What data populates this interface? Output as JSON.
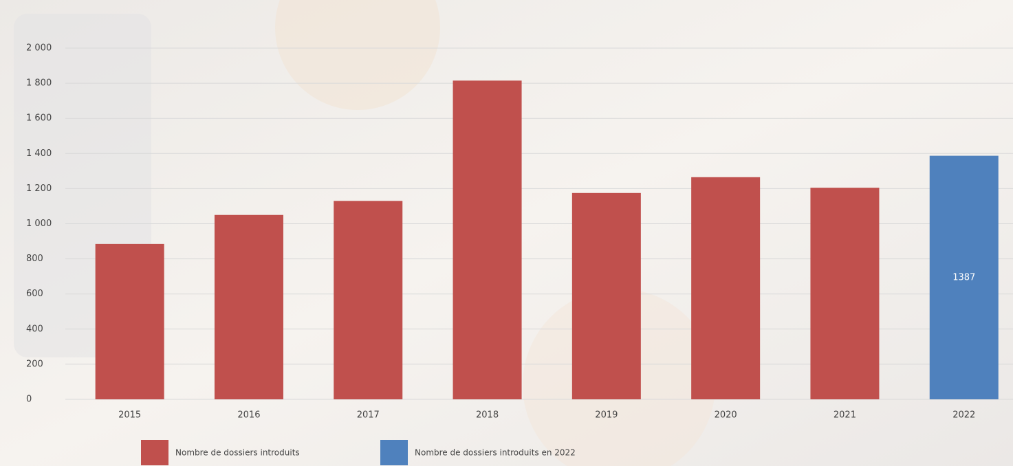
{
  "chart_data": {
    "type": "bar",
    "categories": [
      "2015",
      "2016",
      "2017",
      "2018",
      "2019",
      "2020",
      "2021",
      "2022"
    ],
    "series": [
      {
        "name": "Nombre de dossiers introduits",
        "color": "#c0504d",
        "values": [
          885,
          1050,
          1130,
          1815,
          1175,
          1265,
          1205,
          null
        ]
      },
      {
        "name": "Nombre de dossiers introduits en 2022",
        "color": "#4f81bd",
        "values": [
          null,
          null,
          null,
          null,
          null,
          null,
          null,
          1387
        ]
      }
    ],
    "data_labels": [
      1
    ],
    "ylim": [
      0,
      2000
    ],
    "yticks": [
      0,
      200,
      400,
      600,
      800,
      {
        "value": 1000,
        "label": "1 000"
      },
      {
        "value": 1200,
        "label": "1 200"
      },
      {
        "value": 1400,
        "label": "1 400"
      },
      {
        "value": 1600,
        "label": "1 600"
      },
      {
        "value": 1800,
        "label": "1 800"
      },
      {
        "value": 2000,
        "label": "2 000"
      }
    ],
    "grid": true,
    "legend": "bottom"
  }
}
